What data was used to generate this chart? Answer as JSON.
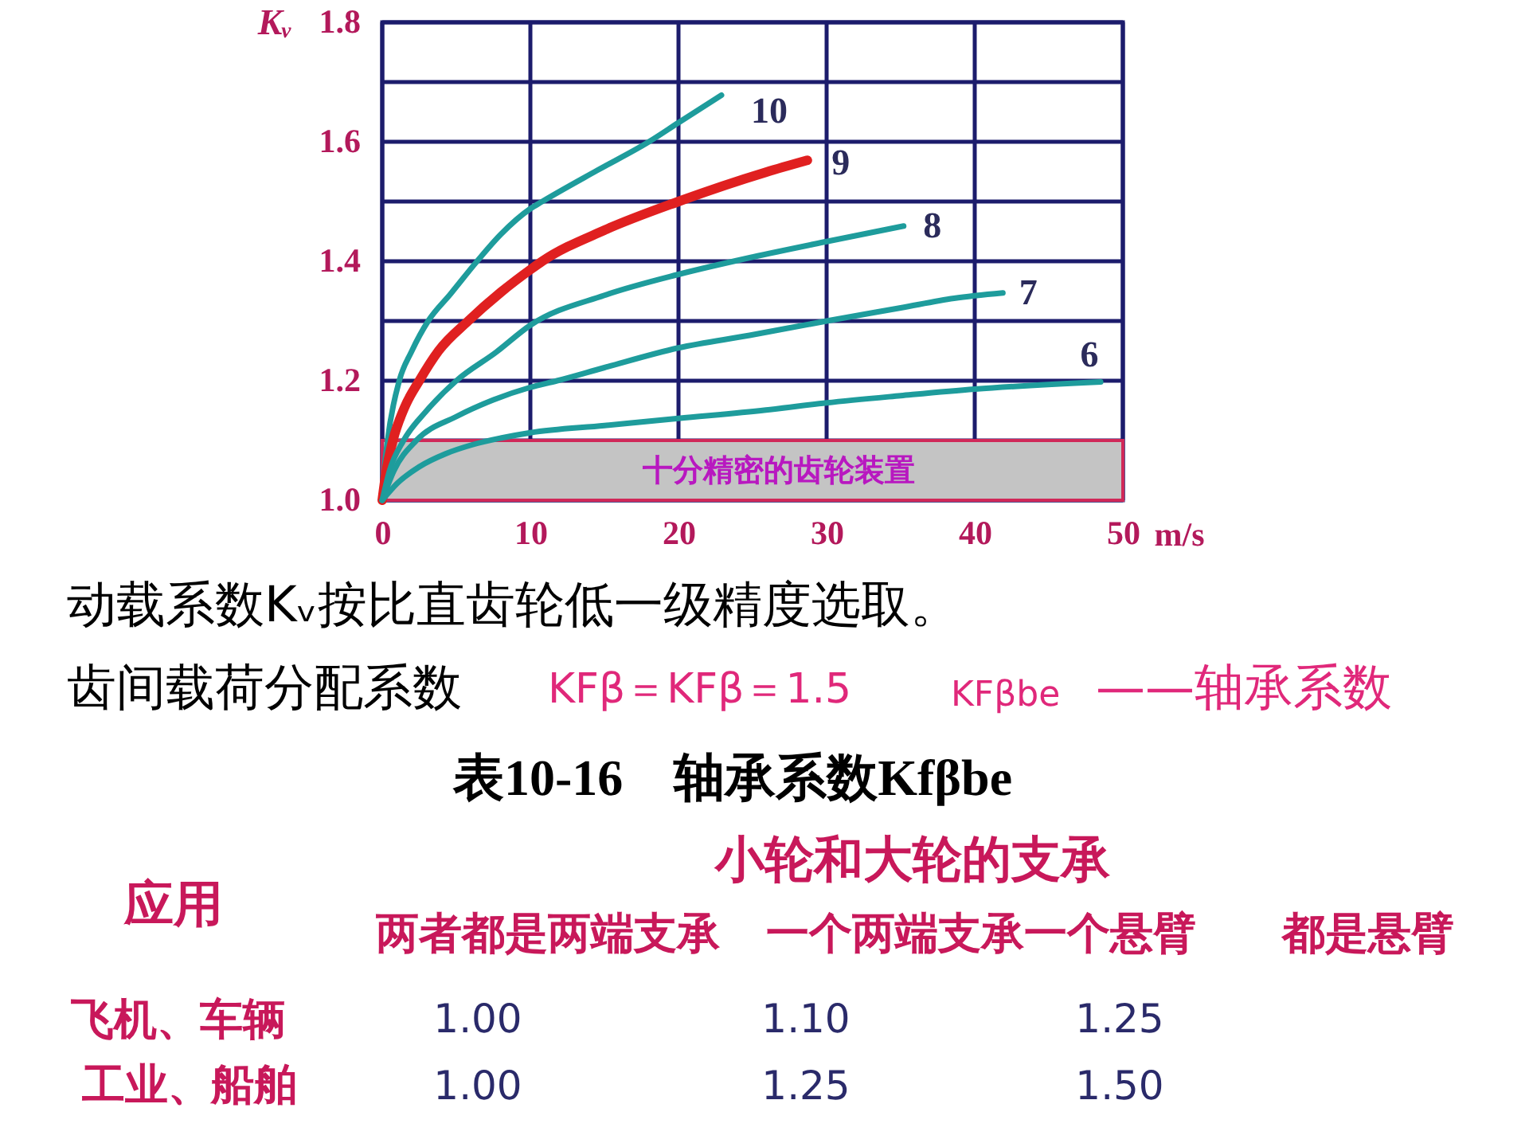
{
  "chart_data": {
    "type": "line",
    "xlabel": "m/s",
    "ylabel": "Kᵥ",
    "xlim": [
      0,
      50
    ],
    "xticks": [
      0,
      10,
      20,
      30,
      40,
      50
    ],
    "ylim": [
      1.0,
      1.8
    ],
    "yticks": [
      {
        "value": 1.0,
        "label": "1.0"
      },
      {
        "value": 1.1,
        "label": null
      },
      1.2,
      {
        "value": 1.3,
        "label": null
      },
      1.4,
      {
        "value": 1.5,
        "label": null
      },
      1.6,
      {
        "value": 1.7,
        "label": null
      },
      1.8
    ],
    "grid": true,
    "series": [
      {
        "name": "10",
        "color": "#1e9c9c",
        "x": [
          0,
          0.1,
          0.36,
          1.15,
          2.0,
          3.1,
          4.6,
          6.4,
          8,
          10,
          10.8,
          14.5,
          18,
          20,
          22.9
        ],
        "values": [
          1.0,
          1.04,
          1.1,
          1.2,
          1.25,
          1.3,
          1.345,
          1.4,
          1.445,
          1.488,
          1.5,
          1.552,
          1.6,
          1.632,
          1.678
        ]
      },
      {
        "name": "9",
        "color": "#e02020",
        "x": [
          0,
          0.25,
          0.72,
          1.5,
          2.5,
          3.8,
          5.8,
          8,
          10,
          10.8,
          15,
          20,
          25.9,
          28.7
        ],
        "values": [
          1.0,
          1.045,
          1.1,
          1.155,
          1.2,
          1.25,
          1.3,
          1.348,
          1.386,
          1.4,
          1.452,
          1.5,
          1.549,
          1.569
        ]
      },
      {
        "name": "8",
        "color": "#1e9c9c",
        "x": [
          0,
          0.5,
          1.44,
          3,
          5,
          7.7,
          10,
          15,
          20,
          25,
          30,
          35.2
        ],
        "values": [
          1.0,
          1.05,
          1.1,
          1.15,
          1.2,
          1.248,
          1.293,
          1.343,
          1.378,
          1.407,
          1.433,
          1.459
        ]
      },
      {
        "name": "7",
        "color": "#1e9c9c",
        "x": [
          0,
          0.8,
          2.3,
          5,
          7.5,
          10,
          11.8,
          15,
          20,
          24.8,
          30,
          35,
          38.6,
          41.9
        ],
        "values": [
          1.0,
          1.05,
          1.1,
          1.14,
          1.168,
          1.189,
          1.2,
          1.222,
          1.255,
          1.276,
          1.3,
          1.322,
          1.338,
          1.347
        ]
      },
      {
        "name": "6",
        "color": "#1e9c9c",
        "x": [
          0,
          1,
          2.5,
          4.3,
          6.1,
          8,
          10,
          15,
          20,
          25.9,
          30,
          35,
          40,
          48.5
        ],
        "values": [
          1.0,
          1.028,
          1.056,
          1.078,
          1.093,
          1.104,
          1.113,
          1.125,
          1.137,
          1.151,
          1.163,
          1.175,
          1.186,
          1.198
        ]
      }
    ],
    "bands": [
      {
        "axis": "y",
        "from": 1.0,
        "to": 1.1,
        "label": "十分精密的齿轮装置",
        "color": "#c4c4c4"
      }
    ],
    "annotations": [
      "动载系数Kᵥ按比直齿轮低一级精度选取。",
      "齿间载荷分配系数",
      "KFβ＝KFβ＝1.5",
      "KFβbe",
      "——轴承系数",
      "表10-16　轴承系数Kfβbe",
      "应用",
      "小轮和大轮的支承",
      "两者都是两端支承",
      "一个两端支承一个悬臂",
      "都是悬臂",
      "飞机、车辆",
      "1.00",
      "1.10",
      "1.25",
      "工业、船舶",
      "1.00",
      "1.25",
      "1.50"
    ]
  }
}
